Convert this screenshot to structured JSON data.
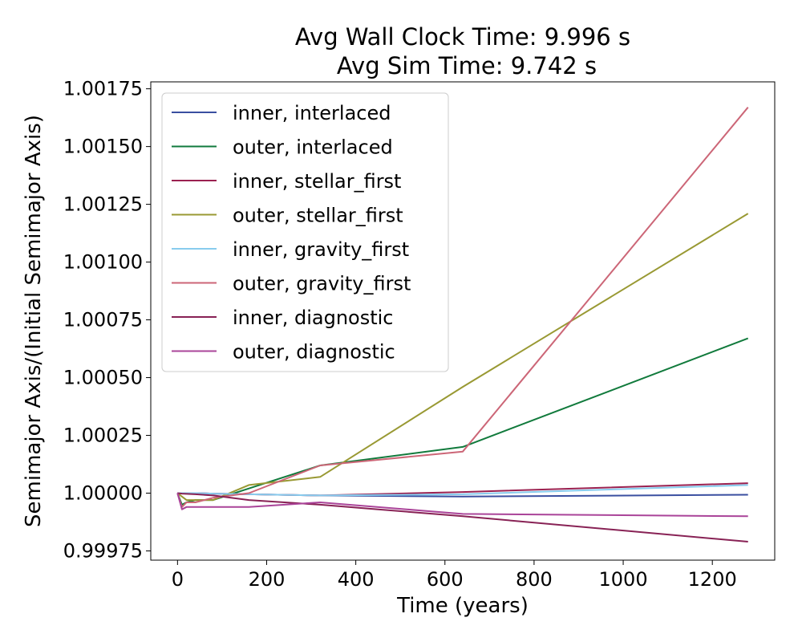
{
  "chart_data": {
    "type": "line",
    "title": [
      "Avg Wall Clock Time: 9.996 s",
      "Avg Sim Time: 9.742 s"
    ],
    "xlabel": "Time (years)",
    "ylabel": "Semimajor Axis/(Initial Semimajor Axis)",
    "xlim": [
      -60,
      1340
    ],
    "ylim": [
      0.99971,
      1.00178
    ],
    "xticks": [
      0,
      200,
      400,
      600,
      800,
      1000,
      1200
    ],
    "xtick_labels": [
      "0",
      "200",
      "400",
      "600",
      "800",
      "1000",
      "1200"
    ],
    "yticks": [
      0.99975,
      1.0,
      1.00025,
      1.0005,
      1.00075,
      1.001,
      1.00125,
      1.0015,
      1.00175
    ],
    "ytick_labels": [
      "0.99975",
      "1.00000",
      "1.00025",
      "1.00050",
      "1.00075",
      "1.00100",
      "1.00125",
      "1.00150",
      "1.00175"
    ],
    "grid": false,
    "legend_position": "upper-left",
    "series": [
      {
        "name": "inner, interlaced",
        "color": "#3a4fa0",
        "x": [
          0,
          10,
          20,
          40,
          80,
          160,
          320,
          640,
          1280
        ],
        "y": [
          1.0,
          1.0,
          1.0,
          1.0,
          0.999998,
          0.999995,
          0.99999,
          0.999985,
          0.999993
        ]
      },
      {
        "name": "outer, interlaced",
        "color": "#117a3c",
        "x": [
          0,
          10,
          20,
          40,
          80,
          160,
          320,
          640,
          1280
        ],
        "y": [
          1.0,
          0.99995,
          0.99996,
          0.99997,
          0.99997,
          1.00002,
          1.00012,
          1.0002,
          1.00067
        ]
      },
      {
        "name": "inner, stellar_first",
        "color": "#9b2150",
        "x": [
          0,
          10,
          20,
          40,
          80,
          160,
          320,
          640,
          1280
        ],
        "y": [
          1.0,
          1.0,
          1.0,
          1.0,
          0.999998,
          0.999995,
          0.99999,
          1.000005,
          1.000043
        ]
      },
      {
        "name": "outer, stellar_first",
        "color": "#999933",
        "x": [
          0,
          10,
          20,
          40,
          80,
          160,
          320,
          640,
          1280
        ],
        "y": [
          1.0,
          0.999985,
          0.99997,
          0.99997,
          0.99997,
          1.000035,
          1.00007,
          1.00046,
          1.00121
        ]
      },
      {
        "name": "inner, gravity_first",
        "color": "#88ccee",
        "x": [
          0,
          10,
          20,
          40,
          80,
          160,
          320,
          640,
          1280
        ],
        "y": [
          1.0,
          1.0,
          1.0,
          1.0,
          0.999998,
          0.999995,
          0.99999,
          0.999995,
          1.000035
        ]
      },
      {
        "name": "outer, gravity_first",
        "color": "#cc6677",
        "x": [
          0,
          10,
          20,
          40,
          80,
          160,
          320,
          640,
          1280
        ],
        "y": [
          1.0,
          0.99994,
          0.99996,
          0.99996,
          0.99998,
          1.0,
          1.00012,
          1.00018,
          1.00167
        ]
      },
      {
        "name": "inner, diagnostic",
        "color": "#882255",
        "x": [
          0,
          10,
          20,
          40,
          80,
          160,
          320,
          640,
          1280
        ],
        "y": [
          1.0,
          0.999998,
          0.999997,
          0.999995,
          0.99999,
          0.99997,
          0.99995,
          0.9999,
          0.99979
        ]
      },
      {
        "name": "outer, diagnostic",
        "color": "#aa4499",
        "x": [
          0,
          10,
          20,
          40,
          80,
          160,
          320,
          640,
          1280
        ],
        "y": [
          1.0,
          0.99993,
          0.99994,
          0.99994,
          0.99994,
          0.99994,
          0.99996,
          0.99991,
          0.9999
        ]
      }
    ]
  }
}
